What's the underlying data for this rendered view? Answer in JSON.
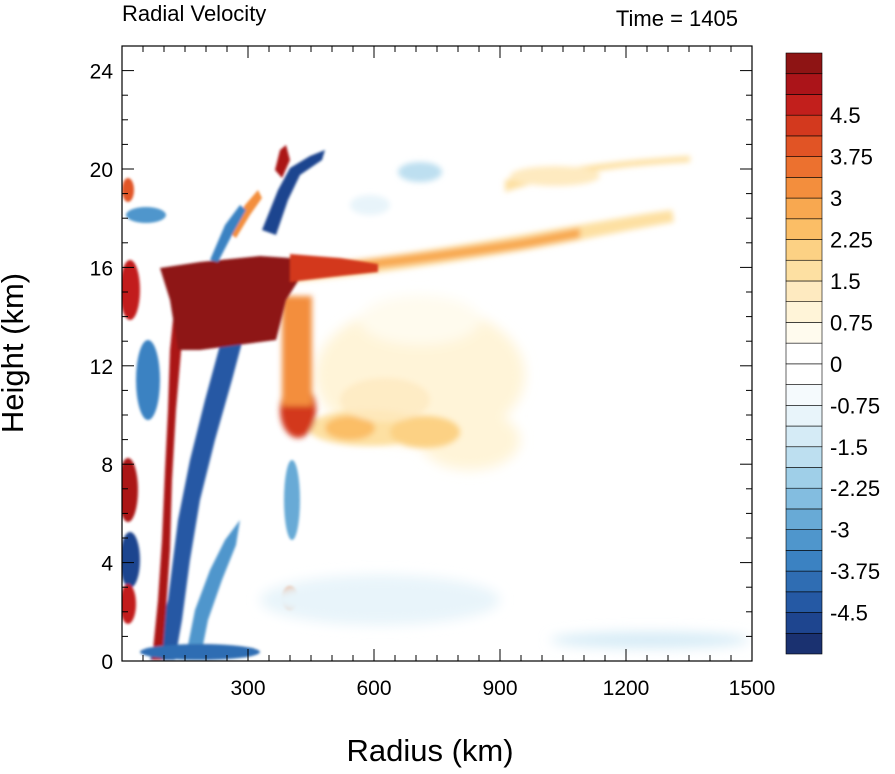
{
  "chart_data": {
    "type": "heatmap",
    "title": "Radial Velocity",
    "subtitle": "Time = 1405",
    "xlabel": "Radius (km)",
    "ylabel": "Height (km)",
    "xlim": [
      0,
      1500
    ],
    "ylim": [
      0,
      25
    ],
    "x_ticks": [
      "300",
      "600",
      "900",
      "1200",
      "1500"
    ],
    "y_ticks": [
      "0",
      "4",
      "8",
      "12",
      "16",
      "20",
      "24"
    ],
    "colorbar": {
      "range": [
        -5.25,
        5.25
      ],
      "step": 0.375,
      "tick_labels": [
        "4.5",
        "3.75",
        "3",
        "2.25",
        "1.5",
        "0.75",
        "0",
        "-0.75",
        "-1.5",
        "-2.25",
        "-3",
        "-3.75",
        "-4.5"
      ],
      "colors_low_to_high": [
        "#1a3170",
        "#1e458f",
        "#2559a4",
        "#2f6db3",
        "#3b82c2",
        "#4f96cc",
        "#68aad6",
        "#83bde0",
        "#9fcfe8",
        "#bddff0",
        "#d5ebf6",
        "#e8f4fa",
        "#f5fafd",
        "#ffffff",
        "#ffffff",
        "#fffbee",
        "#fff4d8",
        "#feeac0",
        "#fde0a2",
        "#fcd184",
        "#fbbe66",
        "#f8a850",
        "#f38e3d",
        "#ec712f",
        "#e15425",
        "#d3391e",
        "#c21f1c",
        "#ab1419",
        "#8e1414"
      ]
    },
    "features": [
      {
        "kind": "outflow_jet",
        "value": 5.5,
        "x_range": [
          110,
          390
        ],
        "y_range": [
          12.5,
          16.2
        ]
      },
      {
        "kind": "outflow_layer",
        "value": 2.0,
        "x_range": [
          380,
          1300
        ],
        "y_range": [
          16,
          18.5
        ]
      },
      {
        "kind": "upper_outflow",
        "value": 1.3,
        "x_range": [
          950,
          1400
        ],
        "y_range": [
          19.5,
          21
        ]
      },
      {
        "kind": "inflow_band",
        "value": -4.5,
        "x_range": [
          90,
          260
        ],
        "y_range": [
          0,
          12
        ]
      },
      {
        "kind": "mid_level_outflow",
        "value": 1.5,
        "x_range": [
          300,
          880
        ],
        "y_range": [
          8,
          15
        ]
      },
      {
        "kind": "boundary_inflow",
        "value": -4.0,
        "x_range": [
          100,
          300
        ],
        "y_range": [
          0,
          1
        ]
      }
    ]
  }
}
